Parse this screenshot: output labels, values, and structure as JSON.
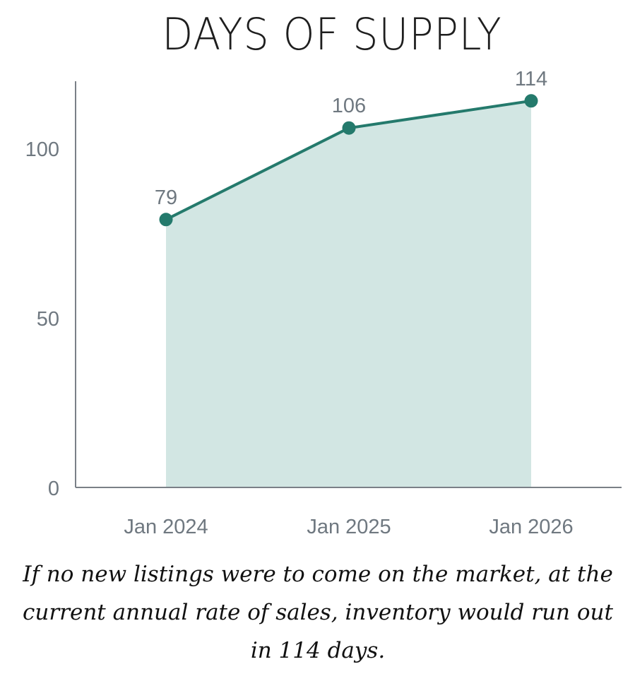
{
  "chart_data": {
    "type": "area",
    "title": "DAYS OF SUPPLY",
    "categories": [
      "Jan 2024",
      "Jan 2025",
      "Jan 2026"
    ],
    "values": [
      79,
      106,
      114
    ],
    "data_labels": [
      "79",
      "106",
      "114"
    ],
    "y_ticks": [
      "0",
      "50",
      "100"
    ],
    "ylim": [
      0,
      120
    ],
    "grid": false,
    "legend": "none"
  },
  "caption": "If no new listings were to come on the market, at the current annual rate of sales, inventory would run out in 114 days.",
  "colors": {
    "line": "#247a6c",
    "fill": "#d2e6e3",
    "axis": "#7a8087",
    "text": "#6f7880"
  }
}
